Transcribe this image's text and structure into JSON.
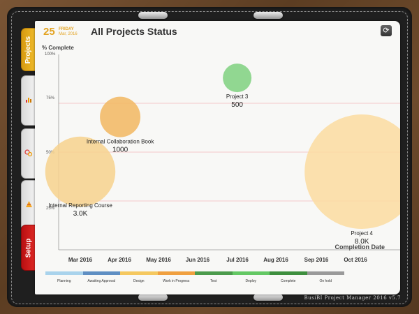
{
  "header": {
    "date_day_number": "25",
    "date_weekday": "FRIDAY",
    "date_month_year": "Mar, 2016",
    "title": "All Projects Status",
    "sync_icon": "sync-icon"
  },
  "tabs": {
    "projects_label": "Projects",
    "setup_label": "Setup",
    "tab2_icon": "bar-chart-icon",
    "tab3_icon": "bubble-chart-icon",
    "tab4_icon": "pyramid-chart-icon"
  },
  "chart_data": {
    "type": "scatter",
    "title": "All Projects Status",
    "ylabel": "% Complete",
    "xlabel": "Completion Date",
    "ylim": [
      0,
      100
    ],
    "y_ticks": [
      "25%",
      "50%",
      "75%",
      "100%"
    ],
    "x_ticks": [
      "Mar 2016",
      "Apr 2016",
      "May 2016",
      "Jun 2016",
      "Jul 2016",
      "Aug 2016",
      "Sep 2016",
      "Oct 2016"
    ],
    "points": [
      {
        "label": "Internal Reporting Course",
        "x": "2016-03-15",
        "y": 40,
        "size_label": "3.0K",
        "color": "#f7d28d"
      },
      {
        "label": "Internal Collaboration Book",
        "x": "2016-04-15",
        "y": 68,
        "size_label": "1000",
        "color": "#f2b760"
      },
      {
        "label": "Project 3",
        "x": "2016-07-15",
        "y": 88,
        "size_label": "500",
        "color": "#7fd17f"
      },
      {
        "label": "Project 4",
        "x": "2016-10-20",
        "y": 40,
        "size_label": "8.0K",
        "color": "#fbdca0"
      }
    ],
    "gridlines": [
      25,
      50,
      75
    ],
    "gridline_color": "#f3c9c9"
  },
  "legend": [
    {
      "label": "Planning",
      "color": "#a9d3ec"
    },
    {
      "label": "Awaiting Approval",
      "color": "#5f8fc3"
    },
    {
      "label": "Design",
      "color": "#f5c85f"
    },
    {
      "label": "Work in Progress",
      "color": "#f0a040"
    },
    {
      "label": "Test",
      "color": "#4c9b4c"
    },
    {
      "label": "Deploy",
      "color": "#64c864"
    },
    {
      "label": "Complete",
      "color": "#3e8f3e"
    },
    {
      "label": "On hold",
      "color": "#9a9a9a"
    }
  ],
  "footer": "BusiBI Project Manager 2016 v5.7"
}
